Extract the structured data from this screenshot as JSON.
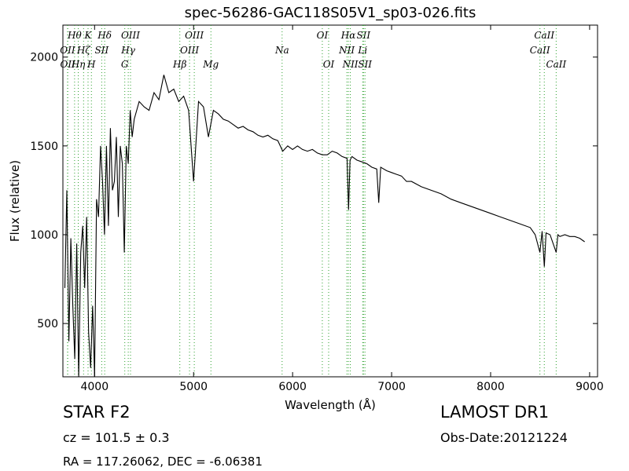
{
  "chart_data": {
    "type": "line",
    "title": "spec-56286-GAC118S05V1_sp03-026.fits",
    "xlabel": "Wavelength (Å)",
    "ylabel": "Flux (relative)",
    "xlim": [
      3680,
      9080
    ],
    "ylim": [
      200,
      2180
    ],
    "xticks": [
      4000,
      5000,
      6000,
      7000,
      8000,
      9000
    ],
    "yticks": [
      500,
      1000,
      1500,
      2000
    ],
    "grid": false,
    "line_color": "#000000",
    "marker_line_color": "#2ca02c",
    "series": [
      {
        "x": [
          3700,
          3720,
          3740,
          3760,
          3780,
          3800,
          3820,
          3840,
          3860,
          3880,
          3900,
          3920,
          3940,
          3960,
          3980,
          4000,
          4020,
          4040,
          4060,
          4080,
          4100,
          4120,
          4140,
          4160,
          4180,
          4200,
          4220,
          4240,
          4260,
          4280,
          4300,
          4320,
          4340,
          4360,
          4380,
          4400,
          4450,
          4500,
          4550,
          4600,
          4650,
          4700,
          4750,
          4800,
          4850,
          4900,
          4950,
          5000,
          5050,
          5100,
          5150,
          5200,
          5250,
          5300,
          5350,
          5400,
          5450,
          5500,
          5550,
          5600,
          5650,
          5700,
          5750,
          5800,
          5850,
          5900,
          5950,
          6000,
          6050,
          6100,
          6150,
          6200,
          6250,
          6300,
          6350,
          6400,
          6450,
          6500,
          6550,
          6565,
          6580,
          6600,
          6650,
          6700,
          6750,
          6800,
          6850,
          6870,
          6890,
          6950,
          7000,
          7050,
          7100,
          7150,
          7200,
          7300,
          7400,
          7500,
          7600,
          7700,
          7800,
          7900,
          8000,
          8100,
          8200,
          8300,
          8400,
          8450,
          8498,
          8520,
          8542,
          8560,
          8600,
          8662,
          8680,
          8700,
          8750,
          8800,
          8850,
          8900,
          8950
        ],
        "values": [
          700,
          1250,
          400,
          980,
          600,
          300,
          950,
          150,
          900,
          1050,
          700,
          1100,
          450,
          250,
          600,
          150,
          1200,
          1100,
          1500,
          1300,
          1000,
          1500,
          1050,
          1600,
          1250,
          1300,
          1550,
          1100,
          1500,
          1400,
          900,
          1500,
          1400,
          1700,
          1550,
          1650,
          1750,
          1720,
          1700,
          1800,
          1760,
          1900,
          1800,
          1820,
          1750,
          1780,
          1700,
          1300,
          1750,
          1720,
          1550,
          1700,
          1680,
          1650,
          1640,
          1620,
          1600,
          1610,
          1590,
          1580,
          1560,
          1550,
          1560,
          1540,
          1530,
          1470,
          1500,
          1480,
          1500,
          1480,
          1470,
          1480,
          1460,
          1450,
          1450,
          1470,
          1460,
          1440,
          1430,
          1140,
          1420,
          1440,
          1420,
          1410,
          1400,
          1380,
          1370,
          1180,
          1380,
          1360,
          1350,
          1340,
          1330,
          1300,
          1300,
          1270,
          1250,
          1230,
          1200,
          1180,
          1160,
          1140,
          1120,
          1100,
          1080,
          1060,
          1040,
          1000,
          900,
          1020,
          820,
          1010,
          1000,
          900,
          1000,
          990,
          1000,
          990,
          990,
          980,
          960
        ]
      }
    ],
    "line_markers": [
      {
        "label": "Hθ",
        "x": 3798,
        "row": 1
      },
      {
        "label": "OII",
        "x": 3727,
        "row": 2
      },
      {
        "label": "OII",
        "x": 3729,
        "row": 3
      },
      {
        "label": "Hη",
        "x": 3835,
        "row": 3
      },
      {
        "label": "Hζ",
        "x": 3889,
        "row": 2
      },
      {
        "label": "K",
        "x": 3934,
        "row": 1
      },
      {
        "label": "H",
        "x": 3968,
        "row": 3
      },
      {
        "label": "SII",
        "x": 4072,
        "row": 2
      },
      {
        "label": "Hδ",
        "x": 4102,
        "row": 1
      },
      {
        "label": "Hγ",
        "x": 4340,
        "row": 2
      },
      {
        "label": "G",
        "x": 4305,
        "row": 3
      },
      {
        "label": "OIII",
        "x": 4363,
        "row": 1
      },
      {
        "label": "Hβ",
        "x": 4861,
        "row": 3
      },
      {
        "label": "OIII",
        "x": 4959,
        "row": 2
      },
      {
        "label": "OIII",
        "x": 5007,
        "row": 1
      },
      {
        "label": "Mg",
        "x": 5175,
        "row": 3
      },
      {
        "label": "Na",
        "x": 5894,
        "row": 2
      },
      {
        "label": "OI",
        "x": 6300,
        "row": 1
      },
      {
        "label": "OI",
        "x": 6364,
        "row": 3
      },
      {
        "label": "NII",
        "x": 6548,
        "row": 2
      },
      {
        "label": "NII",
        "x": 6583,
        "row": 3
      },
      {
        "label": "Hα",
        "x": 6563,
        "row": 1
      },
      {
        "label": "SII",
        "x": 6716,
        "row": 1
      },
      {
        "label": "SII",
        "x": 6731,
        "row": 3
      },
      {
        "label": "Li",
        "x": 6708,
        "row": 2
      },
      {
        "label": "CaII",
        "x": 8498,
        "row": 2
      },
      {
        "label": "CaII",
        "x": 8542,
        "row": 1
      },
      {
        "label": "CaII",
        "x": 8662,
        "row": 3
      }
    ]
  },
  "info": {
    "object_class": "STAR   F2",
    "survey": "LAMOST DR1",
    "cz": "cz = 101.5 ± 0.3",
    "obs_date": "Obs-Date:20121224",
    "radec": "RA = 117.26062, DEC = -6.06381"
  }
}
